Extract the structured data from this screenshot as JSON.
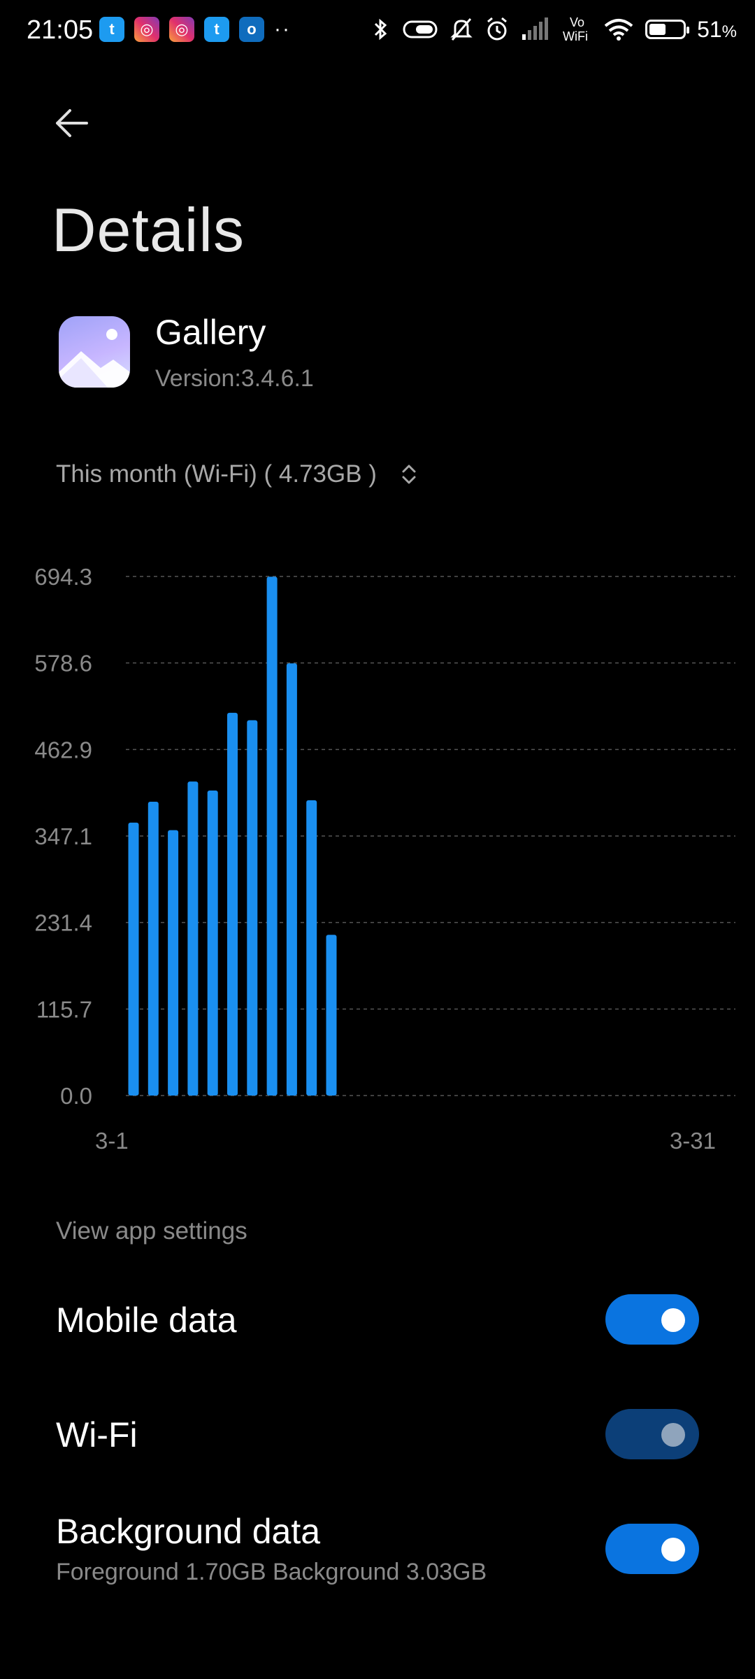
{
  "status_bar": {
    "time": "21:05",
    "notification_icons": [
      "twitter-icon",
      "instagram-icon",
      "instagram-icon",
      "twitter-icon",
      "outlook-icon"
    ],
    "more": "··",
    "battery_percent": "51",
    "battery_unit": "%",
    "battery_level": 0.51,
    "wifi_calling_label_top": "Vo",
    "wifi_calling_label_bottom": "WiFi"
  },
  "header": {
    "title": "Details"
  },
  "app": {
    "name": "Gallery",
    "version": "Version:3.4.6.1"
  },
  "period_selector": {
    "label": "This month (Wi-Fi) ( 4.73GB )"
  },
  "chart_data": {
    "type": "bar",
    "title": "",
    "xlabel": "",
    "ylabel": "",
    "x_tick_labels": [
      "3-1",
      "3-31"
    ],
    "y_tick_labels": [
      "694.3",
      "578.6",
      "462.9",
      "347.1",
      "231.4",
      "115.7",
      "0.0"
    ],
    "ylim": [
      0,
      694.3
    ],
    "x_range": [
      1,
      31
    ],
    "categories": [
      "3-1",
      "3-2",
      "3-3",
      "3-4",
      "3-5",
      "3-6",
      "3-7",
      "3-8",
      "3-9",
      "3-10",
      "3-11"
    ],
    "values": [
      365,
      393,
      355,
      420,
      408,
      512,
      502,
      694,
      578,
      395,
      215
    ],
    "grid": true,
    "bar_color": "#1a8ff0"
  },
  "settings": {
    "hint": "View app settings",
    "mobile_data": {
      "label": "Mobile data",
      "on": true
    },
    "wifi": {
      "label": "Wi-Fi",
      "on": true
    },
    "background_data": {
      "label": "Background data",
      "sub": "Foreground 1.70GB  Background 3.03GB",
      "on": true
    }
  },
  "colors": {
    "accent": "#0a74e0",
    "background": "#000000"
  }
}
